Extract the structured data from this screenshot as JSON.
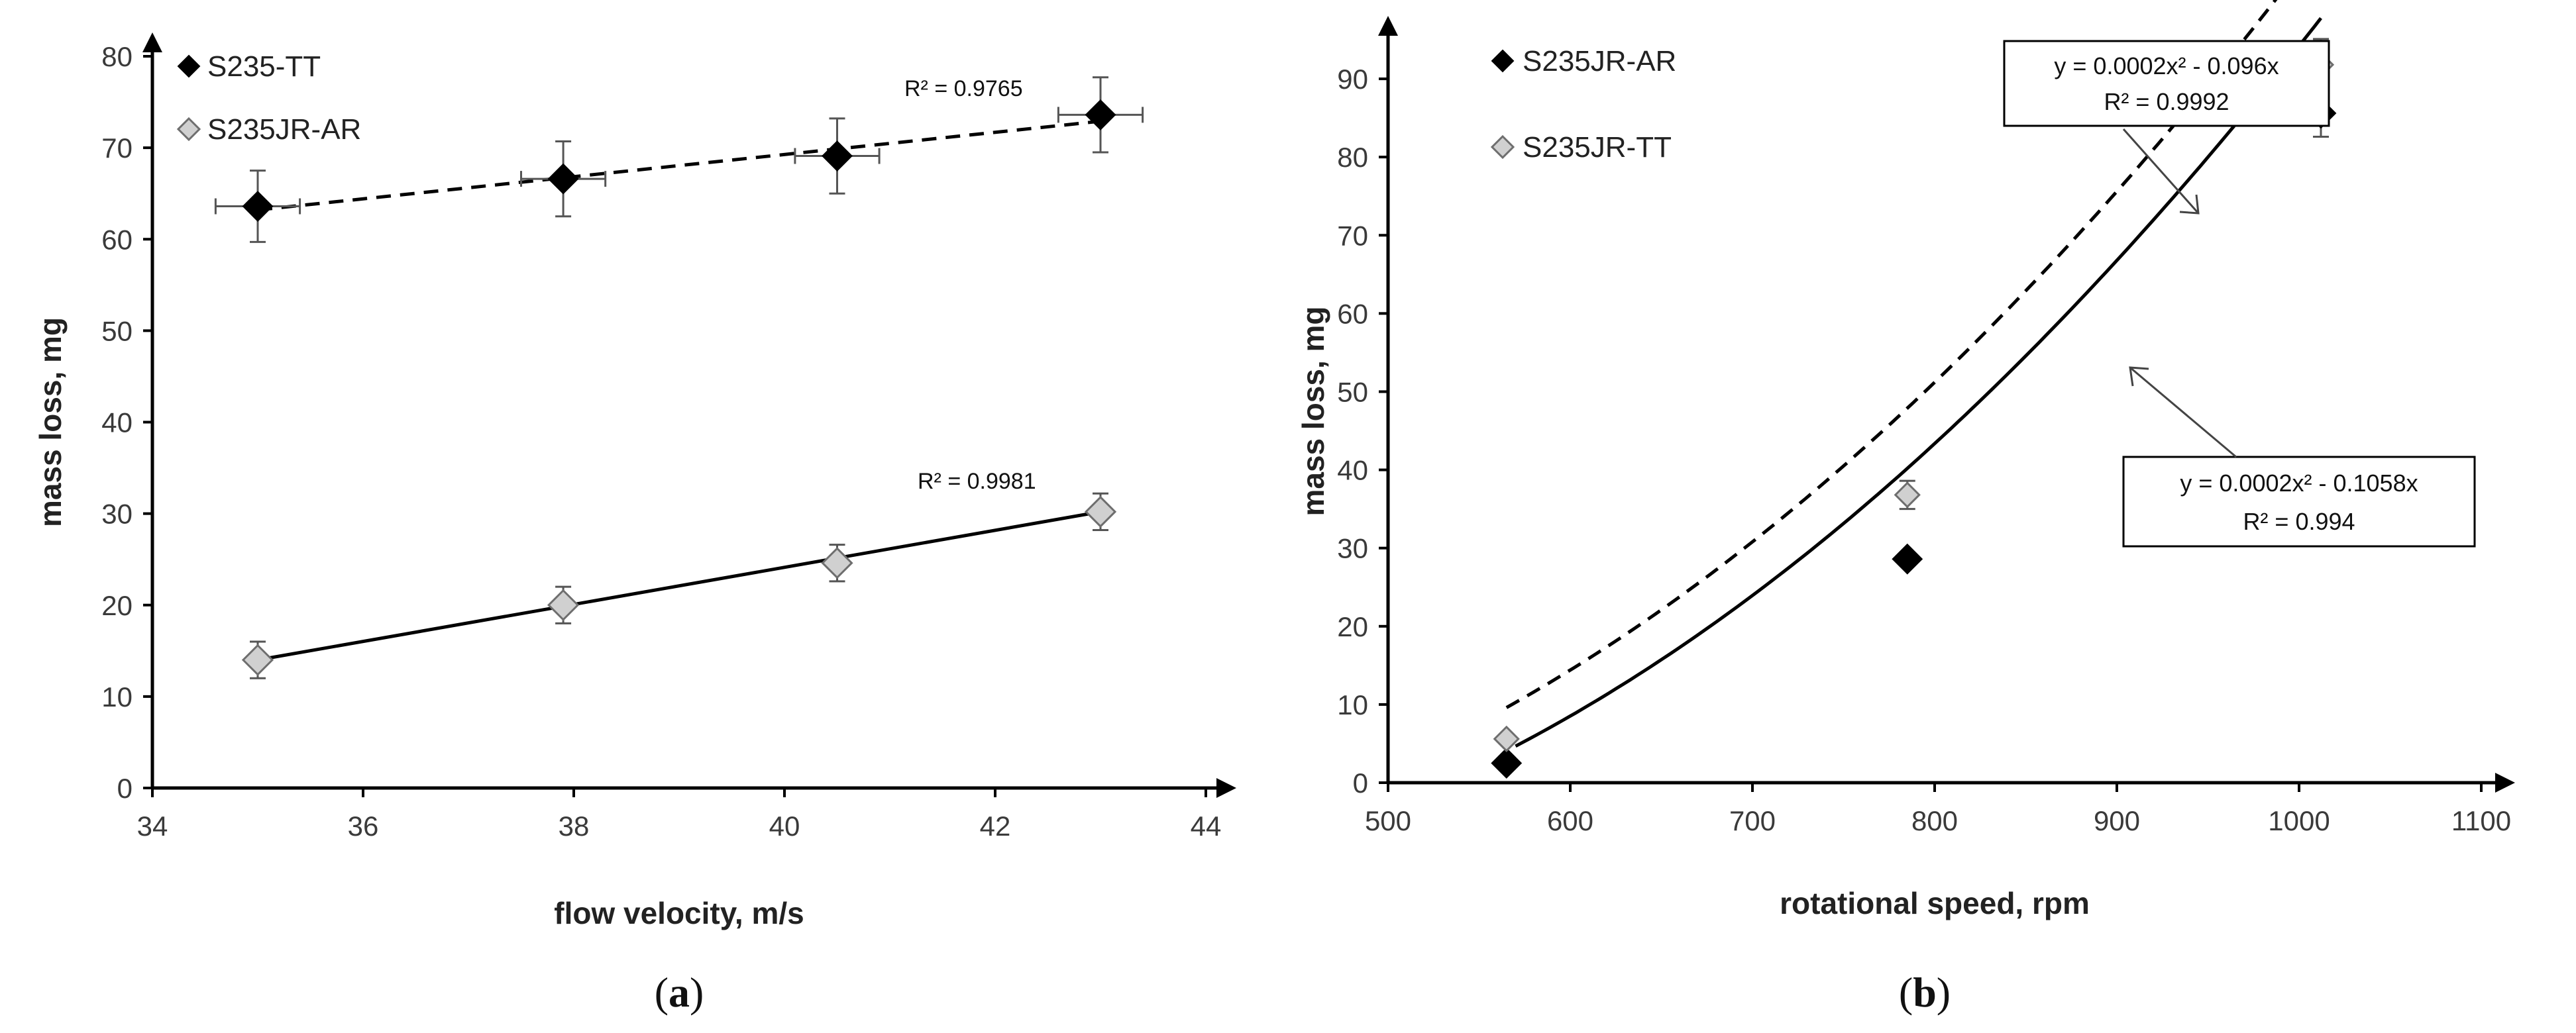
{
  "chart_data": [
    {
      "type": "scatter",
      "panel_label": "a",
      "xlabel": "flow velocity, m/s",
      "ylabel": "mass loss, mg",
      "xlim": [
        34,
        44
      ],
      "ylim": [
        0,
        80
      ],
      "xticks": [
        34,
        36,
        38,
        40,
        42,
        44
      ],
      "yticks": [
        0,
        10,
        20,
        30,
        40,
        50,
        60,
        70,
        80
      ],
      "legend": [
        {
          "name": "S235-TT",
          "marker": "black-diamond"
        },
        {
          "name": "S235JR-AR",
          "marker": "gray-diamond"
        }
      ],
      "series": [
        {
          "name": "S235-TT",
          "marker": "black-diamond",
          "x": [
            35.0,
            37.9,
            40.5,
            43.0
          ],
          "y": [
            63.6,
            66.6,
            69.1,
            73.6
          ],
          "yerr": [
            3.9,
            4.1,
            4.1,
            4.1
          ],
          "xerr": [
            0.4,
            0.4,
            0.4,
            0.4
          ],
          "trend": {
            "style": "dashed",
            "x": [
              35.0,
              43.0
            ],
            "y": [
              63.2,
              72.9
            ],
            "r2_label": "R² = 0.9765"
          }
        },
        {
          "name": "S235JR-AR",
          "marker": "gray-diamond",
          "x": [
            35.0,
            37.9,
            40.5,
            43.0
          ],
          "y": [
            14.0,
            20.0,
            24.6,
            30.2
          ],
          "yerr": [
            2.0,
            2.0,
            2.0,
            2.0
          ],
          "xerr": [
            0,
            0,
            0,
            0
          ],
          "trend": {
            "style": "solid",
            "x": [
              35.0,
              43.0
            ],
            "y": [
              14.0,
              30.2
            ],
            "r2_label": "R² = 0.9981"
          }
        }
      ]
    },
    {
      "type": "scatter",
      "panel_label": "b",
      "xlabel": "rotational speed, rpm",
      "ylabel": "mass loss, mg",
      "xlim": [
        500,
        1100
      ],
      "ylim": [
        0,
        95
      ],
      "xticks": [
        500,
        600,
        700,
        800,
        900,
        1000,
        1100
      ],
      "yticks": [
        0,
        10,
        20,
        30,
        40,
        50,
        60,
        70,
        80,
        90
      ],
      "legend": [
        {
          "name": "S235JR-AR",
          "marker": "black-diamond"
        },
        {
          "name": "S235JR-TT",
          "marker": "gray-diamond"
        }
      ],
      "series": [
        {
          "name": "S235JR-AR",
          "marker": "black-diamond",
          "x": [
            565,
            785,
            1012
          ],
          "y": [
            2.5,
            28.6,
            85.6
          ],
          "yerr": [
            0,
            0,
            3.0
          ],
          "trend": {
            "style": "solid",
            "a": 0.0002,
            "b": -0.1058,
            "x_range": [
              570,
              1012
            ],
            "eq_label": "y = 0.0002x² - 0.1058x",
            "r2_label": "R² = 0.994"
          }
        },
        {
          "name": "S235JR-TT",
          "marker": "gray-diamond",
          "x": [
            565,
            785,
            1012
          ],
          "y": [
            5.6,
            36.8,
            91.8
          ],
          "yerr": [
            0,
            1.8,
            3.3
          ],
          "trend": {
            "style": "dashed",
            "a": 0.0002,
            "b": -0.096,
            "x_range": [
              565,
              1012
            ],
            "eq_label": "y = 0.0002x² - 0.096x",
            "r2_label": "R² = 0.9992"
          }
        }
      ]
    }
  ]
}
